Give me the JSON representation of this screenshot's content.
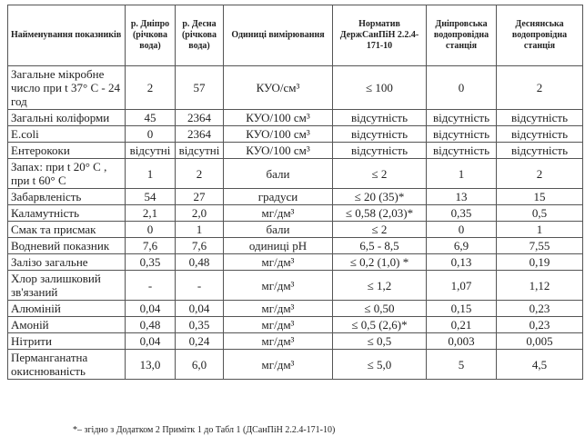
{
  "table": {
    "header": [
      "Найменування показників",
      "р. Дніпро (річкова вода)",
      "р. Десна (річкова вода)",
      "Одиниці вимірювання",
      "Норматив ДержСанПіН 2.2.4-171-10",
      "Дніпровська водопровідна станція",
      "Деснянська водопровідна станція"
    ],
    "rows": [
      [
        "Загальне мікробне число при t 37° С - 24 год",
        "2",
        "57",
        "КУО/см³",
        "≤ 100",
        "0",
        "2"
      ],
      [
        "Загальні коліформи",
        "45",
        "2364",
        "КУО/100 см³",
        "відсутність",
        "відсутність",
        "відсутність"
      ],
      [
        "E.coli",
        "0",
        "2364",
        "КУО/100 см³",
        "відсутність",
        "відсутність",
        "відсутність"
      ],
      [
        "Ентерококи",
        "відсутні",
        "відсутні",
        "КУО/100 см³",
        "відсутність",
        "відсутність",
        "відсутність"
      ],
      [
        "Запах: при t 20° С , при t 60° С",
        "1",
        "2",
        "бали",
        "≤ 2",
        "1",
        "2"
      ],
      [
        "Забарвленість",
        "54",
        "27",
        "градуси",
        "≤ 20 (35)*",
        "13",
        "15"
      ],
      [
        "Каламутність",
        "2,1",
        "2,0",
        "мг/дм³",
        "≤ 0,58 (2,03)*",
        "0,35",
        "0,5"
      ],
      [
        "Смак та присмак",
        "0",
        "1",
        "бали",
        "≤ 2",
        "0",
        "1"
      ],
      [
        "Водневий показник",
        "7,6",
        "7,6",
        "одиниці pH",
        "6,5 - 8,5",
        "6,9",
        "7,55"
      ],
      [
        "Залізо загальне",
        "0,35",
        "0,48",
        "мг/дм³",
        "≤ 0,2 (1,0) *",
        "0,13",
        "0,19"
      ],
      [
        "Хлор залишковий зв'язаний",
        "-",
        "-",
        "мг/дм³",
        "≤ 1,2",
        "1,07",
        "1,12"
      ],
      [
        "Алюміній",
        "0,04",
        "0,04",
        "мг/дм³",
        "≤ 0,50",
        "0,15",
        "0,23"
      ],
      [
        "Амоній",
        "0,48",
        "0,35",
        "мг/дм³",
        "≤ 0,5 (2,6)*",
        "0,21",
        "0,23"
      ],
      [
        "Нітрити",
        "0,04",
        "0,24",
        "мг/дм³",
        "≤ 0,5",
        "0,003",
        "0,005"
      ],
      [
        "Перманганатна окиснюваність",
        "13,0",
        "6,0",
        "мг/дм³",
        "≤ 5,0",
        "5",
        "4,5"
      ]
    ]
  },
  "footnote": "*– згідно з Додатком 2 Примітк 1 до Табл 1 (ДСанПіН 2.2.4-171-10)"
}
